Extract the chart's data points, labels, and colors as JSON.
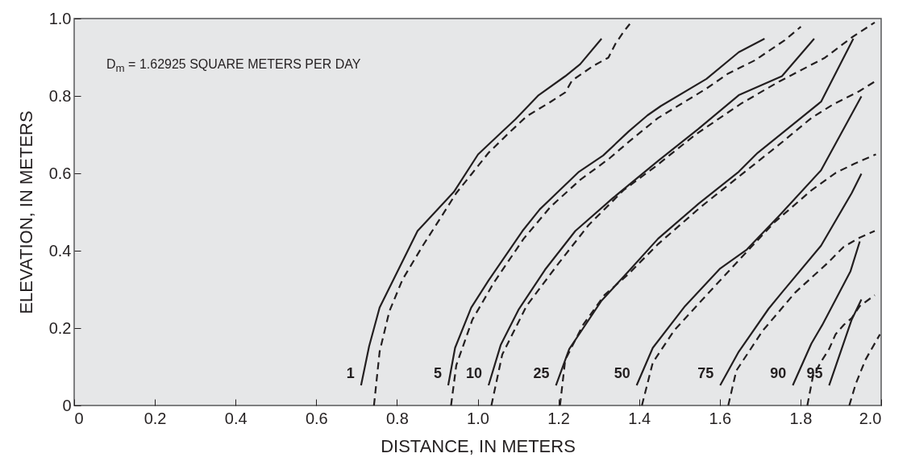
{
  "chart_data": {
    "type": "line",
    "xlabel": "DISTANCE, IN METERS",
    "ylabel": "ELEVATION, IN METERS",
    "xlim": [
      0,
      2
    ],
    "ylim": [
      0,
      1
    ],
    "xticks": [
      0,
      0.2,
      0.4,
      0.6,
      0.8,
      {
        "value": 1,
        "label": "1.0"
      },
      1.2,
      1.4,
      1.6,
      1.8,
      {
        "value": 2,
        "label": "2.0"
      }
    ],
    "yticks": [
      0,
      0.2,
      0.4,
      0.6,
      0.8,
      {
        "value": 1,
        "label": "1.0"
      }
    ],
    "grid": false,
    "legend": false,
    "marker": "none",
    "series": [
      {
        "name": "1",
        "color": "#231f20",
        "line_style": "solid",
        "x": [
          0.711,
          0.731,
          0.757,
          0.851,
          0.941,
          1.001,
          1.054,
          1.094,
          1.151,
          1.217,
          1.254,
          1.307
        ],
        "values": [
          0.052,
          0.153,
          0.253,
          0.451,
          0.552,
          0.649,
          0.701,
          0.74,
          0.802,
          0.851,
          0.882,
          0.948
        ]
      },
      {
        "color": "#231f20",
        "line_style": "dashed",
        "x": [
          0.743,
          0.757,
          0.781,
          0.814,
          0.864,
          0.907,
          0.947,
          0.984,
          1.027,
          1.074,
          1.121,
          1.181,
          1.217,
          1.234,
          1.287,
          1.324,
          1.341,
          1.361,
          1.377
        ],
        "values": [
          0,
          0.139,
          0.243,
          0.326,
          0.413,
          0.483,
          0.549,
          0.597,
          0.653,
          0.701,
          0.747,
          0.785,
          0.809,
          0.84,
          0.878,
          0.899,
          0.934,
          0.965,
          0.986
        ]
      },
      {
        "name": "5",
        "color": "#231f20",
        "line_style": "solid",
        "x": [
          0.927,
          0.944,
          0.984,
          1.027,
          1.111,
          1.154,
          1.251,
          1.311,
          1.374,
          1.421,
          1.454,
          1.567,
          1.647,
          1.711
        ],
        "values": [
          0.052,
          0.149,
          0.253,
          0.323,
          0.451,
          0.507,
          0.604,
          0.646,
          0.708,
          0.75,
          0.774,
          0.844,
          0.913,
          0.948
        ]
      },
      {
        "color": "#231f20",
        "line_style": "dashed",
        "x": [
          0.934,
          0.947,
          0.987,
          1.041,
          1.114,
          1.181,
          1.254,
          1.327,
          1.374,
          1.447,
          1.567,
          1.621,
          1.687,
          1.761,
          1.801
        ],
        "values": [
          0,
          0.104,
          0.222,
          0.319,
          0.431,
          0.514,
          0.583,
          0.639,
          0.681,
          0.743,
          0.819,
          0.858,
          0.892,
          0.944,
          0.979
        ]
      },
      {
        "name": "10",
        "color": "#231f20",
        "line_style": "solid",
        "x": [
          1.027,
          1.057,
          1.101,
          1.167,
          1.242,
          1.334,
          1.447,
          1.547,
          1.647,
          1.754,
          1.834
        ],
        "values": [
          0.052,
          0.156,
          0.247,
          0.351,
          0.451,
          0.535,
          0.632,
          0.715,
          0.802,
          0.851,
          0.948
        ]
      },
      {
        "color": "#231f20",
        "line_style": "dashed",
        "x": [
          1.034,
          1.061,
          1.121,
          1.201,
          1.274,
          1.361,
          1.441,
          1.541,
          1.654,
          1.747,
          1.861,
          1.927,
          1.984
        ],
        "values": [
          0,
          0.132,
          0.257,
          0.368,
          0.465,
          0.556,
          0.618,
          0.701,
          0.781,
          0.837,
          0.899,
          0.951,
          0.99
        ]
      },
      {
        "name": "25",
        "color": "#231f20",
        "line_style": "solid",
        "x": [
          1.194,
          1.227,
          1.254,
          1.307,
          1.374,
          1.447,
          1.547,
          1.647,
          1.694,
          1.751,
          1.851,
          1.931
        ],
        "values": [
          0.052,
          0.146,
          0.188,
          0.271,
          0.347,
          0.431,
          0.521,
          0.604,
          0.653,
          0.701,
          0.785,
          0.948
        ]
      },
      {
        "color": "#231f20",
        "line_style": "dashed",
        "x": [
          1.204,
          1.217,
          1.261,
          1.314,
          1.374,
          1.447,
          1.554,
          1.654,
          1.747,
          1.827,
          1.881,
          1.947,
          1.984
        ],
        "values": [
          0,
          0.118,
          0.208,
          0.285,
          0.34,
          0.417,
          0.514,
          0.597,
          0.674,
          0.743,
          0.778,
          0.813,
          0.837
        ]
      },
      {
        "name": "50",
        "color": "#231f20",
        "line_style": "solid",
        "x": [
          1.394,
          1.434,
          1.514,
          1.601,
          1.667,
          1.747,
          1.851,
          1.951
        ],
        "values": [
          0.052,
          0.149,
          0.257,
          0.354,
          0.403,
          0.49,
          0.608,
          0.799
        ]
      },
      {
        "color": "#231f20",
        "line_style": "dashed",
        "x": [
          1.407,
          1.434,
          1.487,
          1.567,
          1.647,
          1.734,
          1.827,
          1.887,
          1.934,
          1.987
        ],
        "values": [
          0,
          0.111,
          0.194,
          0.285,
          0.375,
          0.472,
          0.556,
          0.601,
          0.625,
          0.649
        ]
      },
      {
        "name": "75",
        "color": "#231f20",
        "line_style": "solid",
        "x": [
          1.601,
          1.647,
          1.721,
          1.754,
          1.851,
          1.927,
          1.951
        ],
        "values": [
          0.052,
          0.139,
          0.25,
          0.292,
          0.413,
          0.549,
          0.599
        ]
      },
      {
        "color": "#231f20",
        "line_style": "dashed",
        "x": [
          1.621,
          1.641,
          1.707,
          1.787,
          1.867,
          1.907,
          1.947,
          1.984
        ],
        "values": [
          0,
          0.09,
          0.194,
          0.292,
          0.368,
          0.41,
          0.434,
          0.451
        ]
      },
      {
        "name": "90",
        "color": "#231f20",
        "line_style": "solid",
        "x": [
          1.781,
          1.827,
          1.854,
          1.924,
          1.947
        ],
        "values": [
          0.052,
          0.16,
          0.208,
          0.347,
          0.424
        ]
      },
      {
        "color": "#231f20",
        "line_style": "dashed",
        "x": [
          1.817,
          1.831,
          1.854,
          1.871,
          1.887,
          1.907,
          1.927,
          1.947,
          1.984
        ],
        "values": [
          0,
          0.076,
          0.118,
          0.146,
          0.184,
          0.208,
          0.226,
          0.257,
          0.285
        ]
      },
      {
        "name": "95",
        "color": "#231f20",
        "line_style": "solid",
        "x": [
          1.871,
          1.927,
          1.951
        ],
        "values": [
          0.052,
          0.222,
          0.274
        ]
      },
      {
        "color": "#231f20",
        "line_style": "dashed",
        "x": [
          1.921,
          1.937,
          1.961,
          1.997
        ],
        "values": [
          0,
          0.056,
          0.118,
          0.184
        ]
      }
    ],
    "annotations": [
      "D$_{m}$ = 1.62925 SQUARE METERS PER DAY"
    ]
  }
}
